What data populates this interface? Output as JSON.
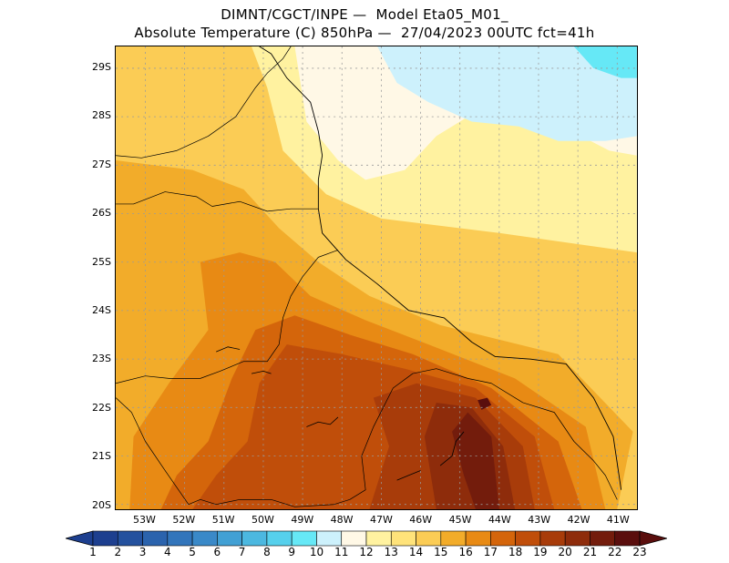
{
  "title_line1": "DIMNT/CGCT/INPE —  Model Eta05_M01_",
  "title_line2": "Absolute Temperature (C) 850hPa —  27/04/2023 00UTC fct=41h",
  "lat_labels": [
    "20S",
    "21S",
    "22S",
    "23S",
    "24S",
    "25S",
    "26S",
    "27S",
    "28S",
    "29S"
  ],
  "lon_labels": [
    "53W",
    "52W",
    "51W",
    "50W",
    "49W",
    "48W",
    "47W",
    "46W",
    "45W",
    "44W",
    "43W",
    "42W",
    "41W"
  ],
  "colorbar": {
    "labels": [
      "1",
      "2",
      "3",
      "4",
      "5",
      "6",
      "7",
      "8",
      "9",
      "10",
      "11",
      "12",
      "13",
      "14",
      "15",
      "16",
      "17",
      "18",
      "19",
      "20",
      "21",
      "22",
      "23"
    ],
    "colors": [
      "#1d3f8f",
      "#24519e",
      "#2b63ad",
      "#3275bb",
      "#3a89c8",
      "#42a0d4",
      "#4cb8e0",
      "#56d0ec",
      "#66e8f6",
      "#cdf1fc",
      "#fff8e6",
      "#fff2a0",
      "#ffe37a",
      "#fbcc55",
      "#f2ac2a",
      "#e88a14",
      "#d4650b",
      "#c04e0a",
      "#a83c0a",
      "#8e2c0b",
      "#731c0c",
      "#5a0e0d"
    ]
  },
  "map": {
    "lon_range": [
      -53.75,
      -40.5
    ],
    "lat_range": [
      -29.45,
      -19.9
    ],
    "temperature_regions": [
      {
        "level": 12,
        "points": [
          [
            -53.75,
            -19.9
          ],
          [
            -40.5,
            -19.9
          ],
          [
            -40.5,
            -29.45
          ],
          [
            -53.75,
            -29.45
          ]
        ]
      },
      {
        "level": 14,
        "points": [
          [
            -53.75,
            -19.9
          ],
          [
            -40.5,
            -19.9
          ],
          [
            -40.5,
            -25.2
          ],
          [
            -44,
            -25.6
          ],
          [
            -47,
            -25.9
          ],
          [
            -48.4,
            -26.4
          ],
          [
            -49.5,
            -27.3
          ],
          [
            -49.9,
            -28.6
          ],
          [
            -50.3,
            -29.45
          ],
          [
            -53.75,
            -29.45
          ]
        ]
      },
      {
        "level": 15,
        "points": [
          [
            -53.75,
            -19.9
          ],
          [
            -41,
            -19.9
          ],
          [
            -40.6,
            -21.5
          ],
          [
            -42.5,
            -23.1
          ],
          [
            -45.5,
            -23.7
          ],
          [
            -47.3,
            -24.3
          ],
          [
            -48.6,
            -25
          ],
          [
            -49.6,
            -25.7
          ],
          [
            -50.5,
            -26.5
          ],
          [
            -51.8,
            -26.9
          ],
          [
            -53.75,
            -27.1
          ]
        ]
      },
      {
        "level": 16,
        "points": [
          [
            -53.4,
            -19.9
          ],
          [
            -41.3,
            -19.9
          ],
          [
            -41.8,
            -21.6
          ],
          [
            -43.6,
            -22.6
          ],
          [
            -45.8,
            -23.3
          ],
          [
            -47.4,
            -23.8
          ],
          [
            -48.8,
            -24.3
          ],
          [
            -49.7,
            -25
          ],
          [
            -50.6,
            -25.2
          ],
          [
            -51.6,
            -25
          ],
          [
            -51.4,
            -23.6
          ],
          [
            -52.4,
            -22.5
          ],
          [
            -53.3,
            -21.4
          ]
        ]
      },
      {
        "level": 17,
        "points": [
          [
            -52.6,
            -19.9
          ],
          [
            -41.9,
            -19.9
          ],
          [
            -42.5,
            -21.3
          ],
          [
            -44.2,
            -22.4
          ],
          [
            -46.2,
            -23.1
          ],
          [
            -47.8,
            -23.5
          ],
          [
            -49.2,
            -23.9
          ],
          [
            -50.2,
            -23.6
          ],
          [
            -50.8,
            -22.6
          ],
          [
            -51.4,
            -21.3
          ],
          [
            -52.2,
            -20.6
          ]
        ]
      },
      {
        "level": 18,
        "points": [
          [
            -51.8,
            -19.9
          ],
          [
            -42.6,
            -19.9
          ],
          [
            -43.1,
            -21.4
          ],
          [
            -44.6,
            -22.4
          ],
          [
            -46.4,
            -22.8
          ],
          [
            -48,
            -23.1
          ],
          [
            -49.4,
            -23.3
          ],
          [
            -50.1,
            -22.5
          ],
          [
            -50.4,
            -21.3
          ],
          [
            -51.2,
            -20.6
          ]
        ]
      },
      {
        "level": 19,
        "points": [
          [
            -47.3,
            -19.9
          ],
          [
            -43.1,
            -19.9
          ],
          [
            -43.4,
            -21.2
          ],
          [
            -44.6,
            -22.2
          ],
          [
            -46.1,
            -22.5
          ],
          [
            -47.2,
            -22.2
          ],
          [
            -46.8,
            -21.2
          ]
        ]
      },
      {
        "level": 20,
        "points": [
          [
            -45.6,
            -19.9
          ],
          [
            -43.6,
            -19.9
          ],
          [
            -43.9,
            -21.2
          ],
          [
            -44.7,
            -22
          ],
          [
            -45.6,
            -22.1
          ],
          [
            -45.9,
            -21.4
          ]
        ]
      },
      {
        "level": 21,
        "points": [
          [
            -44.6,
            -19.9
          ],
          [
            -44,
            -19.9
          ],
          [
            -44.2,
            -21.4
          ],
          [
            -44.8,
            -21.9
          ],
          [
            -45.2,
            -21.5
          ],
          [
            -44.9,
            -20.6
          ]
        ]
      },
      {
        "level": 22,
        "points": [
          [
            -44.45,
            -21.95
          ],
          [
            -44.2,
            -22.05
          ],
          [
            -44.3,
            -22.2
          ],
          [
            -44.55,
            -22.15
          ]
        ]
      },
      {
        "level": 11,
        "points": [
          [
            -49.2,
            -29.45
          ],
          [
            -48.9,
            -27.9
          ],
          [
            -48.1,
            -27.1
          ],
          [
            -47.4,
            -26.7
          ],
          [
            -46.4,
            -26.9
          ],
          [
            -45.6,
            -27.6
          ],
          [
            -44.6,
            -28.1
          ],
          [
            -43.6,
            -28.2
          ],
          [
            -42.4,
            -27.8
          ],
          [
            -41.2,
            -27.3
          ],
          [
            -40.5,
            -27.2
          ],
          [
            -40.5,
            -29.45
          ]
        ]
      },
      {
        "level": 10,
        "points": [
          [
            -47.1,
            -29.45
          ],
          [
            -46.6,
            -28.7
          ],
          [
            -45.8,
            -28.3
          ],
          [
            -44.7,
            -27.9
          ],
          [
            -43.5,
            -27.8
          ],
          [
            -42.5,
            -27.5
          ],
          [
            -41.3,
            -27.5
          ],
          [
            -40.5,
            -27.6
          ],
          [
            -40.5,
            -29.45
          ]
        ]
      },
      {
        "level": 9,
        "points": [
          [
            -42.1,
            -29.45
          ],
          [
            -41.6,
            -29
          ],
          [
            -40.9,
            -28.8
          ],
          [
            -40.5,
            -28.8
          ],
          [
            -40.5,
            -29.45
          ]
        ]
      }
    ],
    "coastline": [
      [
        -40.9,
        -20.3
      ],
      [
        -41.1,
        -21.4
      ],
      [
        -41.6,
        -22.2
      ],
      [
        -42.3,
        -22.9
      ],
      [
        -43.2,
        -23
      ],
      [
        -44.1,
        -23.05
      ],
      [
        -44.7,
        -23.35
      ],
      [
        -45.4,
        -23.85
      ],
      [
        -46.3,
        -24
      ],
      [
        -47.1,
        -24.55
      ],
      [
        -47.9,
        -25.05
      ],
      [
        -48.5,
        -25.6
      ],
      [
        -48.6,
        -26.1
      ],
      [
        -48.6,
        -26.7
      ],
      [
        -48.5,
        -27.2
      ],
      [
        -48.6,
        -27.7
      ],
      [
        -48.8,
        -28.3
      ],
      [
        -49.4,
        -28.8
      ],
      [
        -49.8,
        -29.3
      ],
      [
        -50.1,
        -29.45
      ]
    ],
    "borders": [
      [
        [
          -51.9,
          -20
        ],
        [
          -51.6,
          -20.1
        ],
        [
          -51.2,
          -20
        ],
        [
          -50.6,
          -20.1
        ],
        [
          -49.8,
          -20.1
        ],
        [
          -49.2,
          -19.95
        ],
        [
          -48.2,
          -20
        ],
        [
          -47.8,
          -20.1
        ],
        [
          -47.4,
          -20.3
        ],
        [
          -47.5,
          -21
        ],
        [
          -47.2,
          -21.6
        ],
        [
          -46.7,
          -22.4
        ],
        [
          -46.2,
          -22.7
        ],
        [
          -45.6,
          -22.8
        ],
        [
          -44.8,
          -22.6
        ],
        [
          -44.2,
          -22.5
        ],
        [
          -43.4,
          -22.1
        ],
        [
          -42.6,
          -21.9
        ],
        [
          -42.1,
          -21.3
        ],
        [
          -41.6,
          -20.9
        ],
        [
          -41.3,
          -20.6
        ],
        [
          -41,
          -20.1
        ]
      ],
      [
        [
          -51.9,
          -20
        ],
        [
          -52.5,
          -20.7
        ],
        [
          -53,
          -21.3
        ],
        [
          -53.35,
          -21.9
        ],
        [
          -53.75,
          -22.2
        ]
      ],
      [
        [
          -53.75,
          -22.5
        ],
        [
          -53,
          -22.65
        ],
        [
          -52.4,
          -22.6
        ],
        [
          -51.6,
          -22.6
        ],
        [
          -51.1,
          -22.75
        ],
        [
          -50.5,
          -22.95
        ],
        [
          -49.9,
          -22.95
        ],
        [
          -49.6,
          -23.3
        ],
        [
          -49.5,
          -23.85
        ],
        [
          -49.3,
          -24.3
        ],
        [
          -49,
          -24.7
        ],
        [
          -48.6,
          -25.1
        ],
        [
          -48.1,
          -25.25
        ]
      ],
      [
        [
          -53.75,
          -26.2
        ],
        [
          -53.3,
          -26.2
        ],
        [
          -52.5,
          -26.45
        ],
        [
          -51.7,
          -26.35
        ],
        [
          -51.3,
          -26.15
        ],
        [
          -50.6,
          -26.25
        ],
        [
          -49.9,
          -26.05
        ],
        [
          -49.3,
          -26.1
        ],
        [
          -48.6,
          -26.1
        ]
      ],
      [
        [
          -53.75,
          -27.2
        ],
        [
          -53.1,
          -27.15
        ],
        [
          -52.2,
          -27.3
        ],
        [
          -51.4,
          -27.6
        ],
        [
          -50.7,
          -28
        ],
        [
          -50.2,
          -28.6
        ],
        [
          -49.9,
          -28.9
        ],
        [
          -49.5,
          -29.2
        ],
        [
          -49.3,
          -29.45
        ]
      ]
    ],
    "lakes": [
      [
        [
          -48.9,
          -21.6
        ],
        [
          -48.6,
          -21.7
        ],
        [
          -48.3,
          -21.65
        ],
        [
          -48.1,
          -21.8
        ]
      ],
      [
        [
          -45.5,
          -20.8
        ],
        [
          -45.2,
          -21
        ],
        [
          -45.1,
          -21.3
        ],
        [
          -44.9,
          -21.5
        ]
      ],
      [
        [
          -46.6,
          -20.5
        ],
        [
          -46.3,
          -20.6
        ],
        [
          -46,
          -20.7
        ]
      ],
      [
        [
          -50.3,
          -22.7
        ],
        [
          -50.0,
          -22.75
        ],
        [
          -49.8,
          -22.7
        ]
      ],
      [
        [
          -51.2,
          -23.15
        ],
        [
          -50.9,
          -23.25
        ],
        [
          -50.6,
          -23.2
        ]
      ]
    ]
  }
}
